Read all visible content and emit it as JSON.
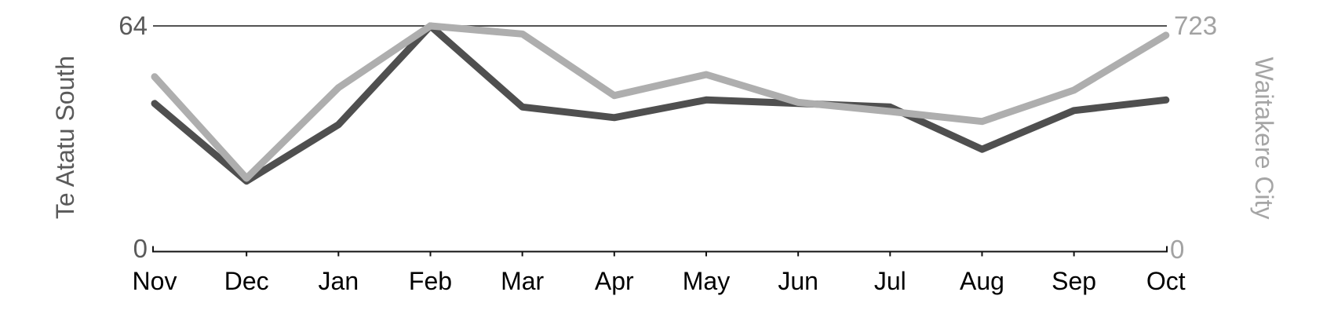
{
  "chart_data": {
    "type": "line",
    "title": "",
    "categories": [
      "Nov",
      "Dec",
      "Jan",
      "Feb",
      "Mar",
      "Apr",
      "May",
      "Jun",
      "Jul",
      "Aug",
      "Sep",
      "Oct"
    ],
    "series": [
      {
        "name": "Te Atatu South",
        "axis": "left",
        "color": "#4f4f4f",
        "axis_range": [
          0,
          64
        ],
        "values": [
          42,
          20,
          36,
          64,
          41,
          38,
          43,
          42,
          41,
          29,
          40,
          43
        ]
      },
      {
        "name": "Waitakere City",
        "axis": "right",
        "color": "#aeaeae",
        "axis_range": [
          0,
          723
        ],
        "values": [
          560,
          235,
          525,
          723,
          697,
          500,
          567,
          478,
          449,
          417,
          517,
          693
        ]
      }
    ],
    "left_axis": {
      "label": "Te Atatu South",
      "max_label": "64",
      "min_label": "0",
      "text_color": "#5a5a5a"
    },
    "right_axis": {
      "label": "Waitakere City",
      "max_label": "723",
      "min_label": "0",
      "text_color": "#a2a2a2"
    },
    "x_axis": {
      "tick_label_color": "#000000",
      "axis_color": "#111111"
    },
    "grid": "single top gridline at axis maximum",
    "gridline_color": "#1a1a1a",
    "legend": "none"
  }
}
